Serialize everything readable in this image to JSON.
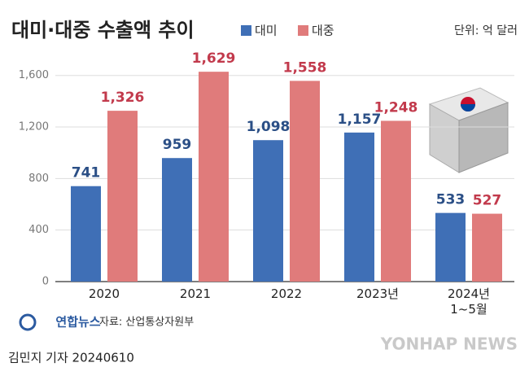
{
  "chart_data": {
    "type": "bar",
    "title": "대미·대중 수출액 추이",
    "unit_label": "단위: 억 달러",
    "categories": [
      "2020",
      "2021",
      "2022",
      "2023년",
      "2024년\n1~5월"
    ],
    "series": [
      {
        "name": "대미",
        "color": "#3f6fb6",
        "label_color": "#2b4f86",
        "values": [
          741,
          959,
          1098,
          1157,
          533
        ],
        "value_labels": [
          "741",
          "959",
          "1,098",
          "1,157",
          "533"
        ]
      },
      {
        "name": "대중",
        "color": "#e07b7b",
        "label_color": "#c23a4c",
        "values": [
          1326,
          1629,
          1558,
          1248,
          527
        ],
        "value_labels": [
          "1,326",
          "1,629",
          "1,558",
          "1,248",
          "527"
        ]
      }
    ],
    "ylim": [
      0,
      1750
    ],
    "yticks": [
      0,
      400,
      800,
      {
        "value": 1200,
        "label": "1,200"
      },
      {
        "value": 1600,
        "label": "1,600"
      }
    ],
    "grid": true
  },
  "source": "자료: 산업통상자원부",
  "logo": "연합뉴스",
  "watermark": "YONHAP NEWS",
  "credit": "김민지 기자 20240610"
}
